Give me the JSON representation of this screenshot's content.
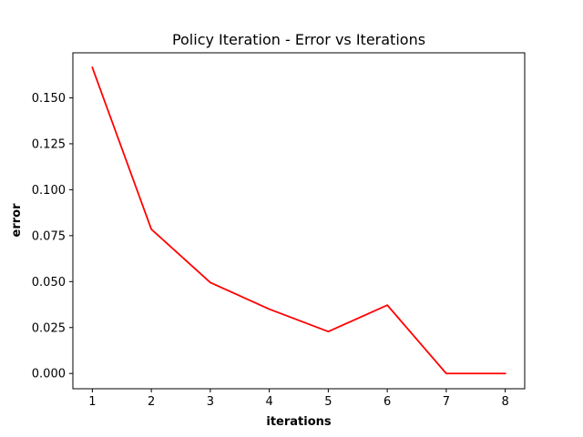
{
  "chart_data": {
    "type": "line",
    "title": "Policy Iteration - Error vs Iterations",
    "xlabel": "iterations",
    "ylabel": "error",
    "xlim": [
      0.67,
      8.33
    ],
    "ylim": [
      -0.0083,
      0.1745
    ],
    "xticks": [
      1,
      2,
      3,
      4,
      5,
      6,
      7,
      8
    ],
    "xtick_labels": [
      "1",
      "2",
      "3",
      "4",
      "5",
      "6",
      "7",
      "8"
    ],
    "yticks": [
      0,
      0.025,
      0.05,
      0.075,
      0.1,
      0.125,
      0.15
    ],
    "ytick_labels": [
      "0.000",
      "0.025",
      "0.050",
      "0.075",
      "0.100",
      "0.125",
      "0.150"
    ],
    "grid": false,
    "series": [
      {
        "color": "#ff0000",
        "x": [
          1,
          2,
          3,
          4,
          5,
          6,
          7,
          8
        ],
        "y": [
          0.1665,
          0.0785,
          0.0495,
          0.035,
          0.0228,
          0.0372,
          0.0,
          0.0
        ]
      }
    ]
  }
}
